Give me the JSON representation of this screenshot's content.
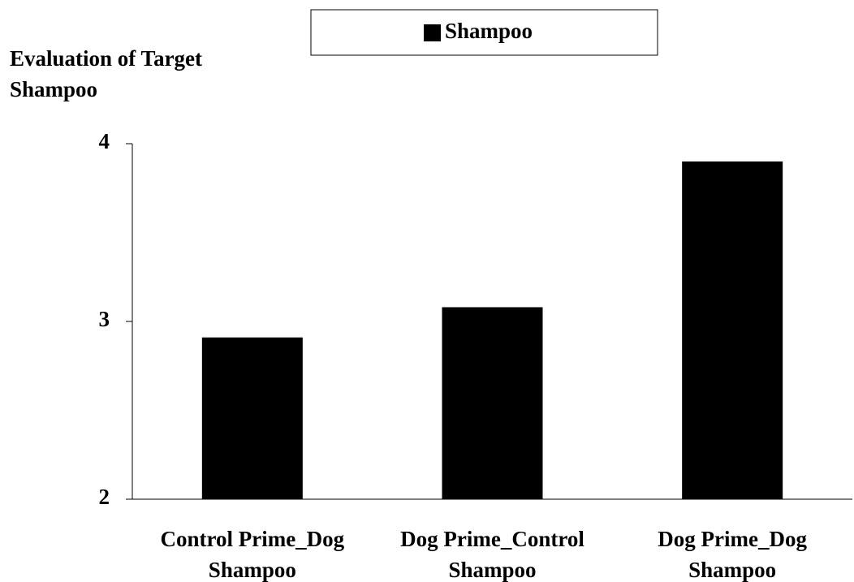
{
  "chart_data": {
    "type": "bar",
    "y_label": "Evaluation of Target Shampoo",
    "categories": [
      "Control Prime_Dog Shampoo",
      "Dog Prime_Control Shampoo",
      "Dog Prime_Dog Shampoo"
    ],
    "series": [
      {
        "name": "Shampoo",
        "color": "#000000",
        "values": [
          2.91,
          3.08,
          3.9
        ]
      }
    ],
    "ylim": [
      2,
      4
    ],
    "yticks": [
      2,
      3,
      4
    ],
    "grid": false,
    "legend": "top"
  }
}
